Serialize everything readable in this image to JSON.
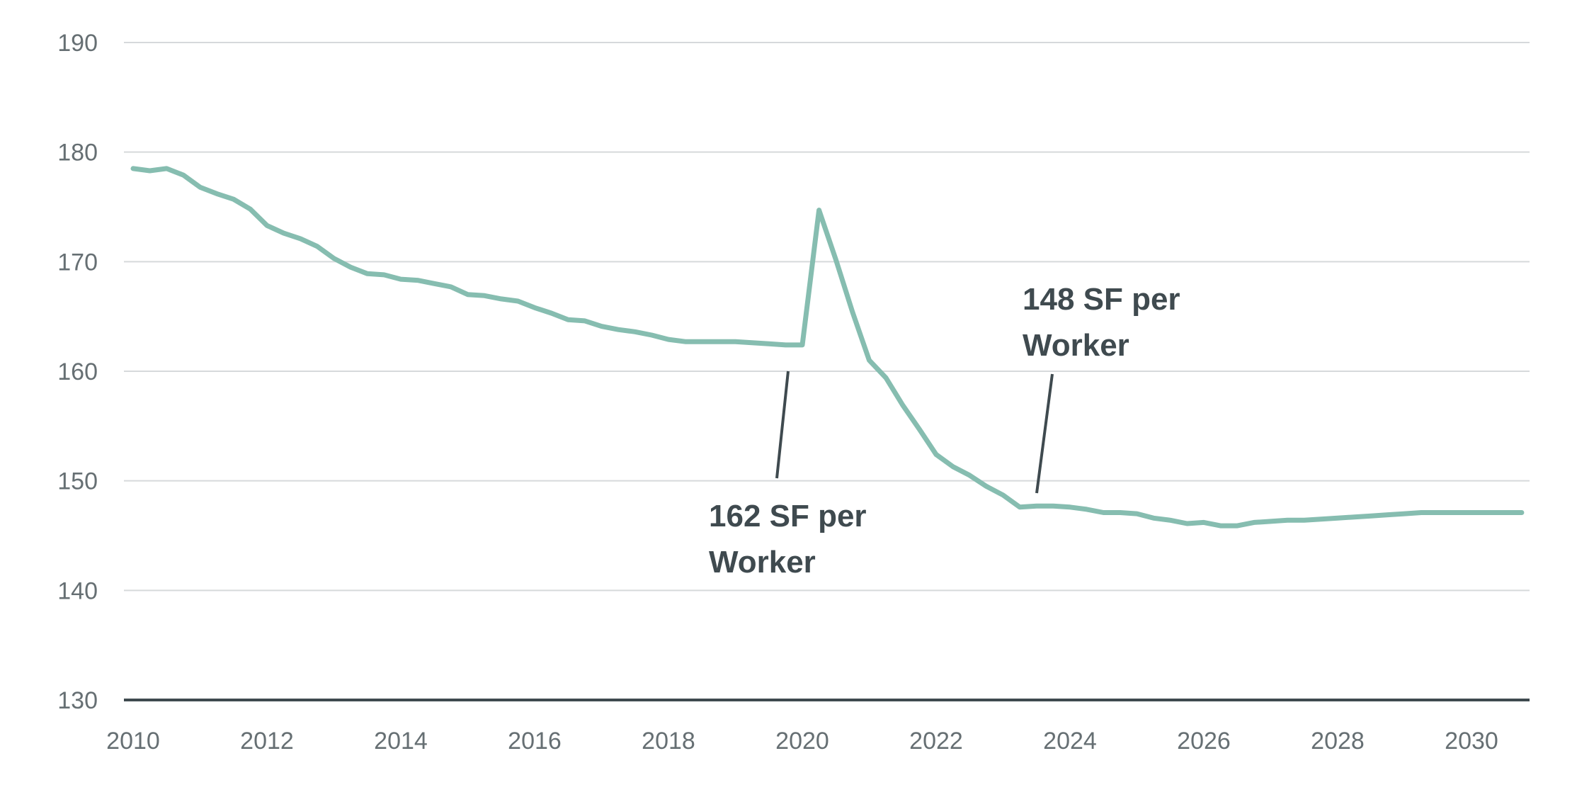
{
  "chart_data": {
    "type": "line",
    "title": "",
    "xlabel": "",
    "ylabel": "",
    "xlim": [
      2010,
      2031
    ],
    "ylim": [
      130,
      190
    ],
    "y_ticks": [
      130,
      140,
      150,
      160,
      170,
      180,
      190
    ],
    "x_ticks": [
      2010,
      2012,
      2014,
      2016,
      2018,
      2020,
      2022,
      2024,
      2026,
      2028,
      2030
    ],
    "grid": true,
    "line_color": "#86bdb0",
    "series": [
      {
        "name": "SF per worker",
        "x": [
          2010.0,
          2010.25,
          2010.5,
          2010.75,
          2011.0,
          2011.25,
          2011.5,
          2011.75,
          2012.0,
          2012.25,
          2012.5,
          2012.75,
          2013.0,
          2013.25,
          2013.5,
          2013.75,
          2014.0,
          2014.25,
          2014.5,
          2014.75,
          2015.0,
          2015.25,
          2015.5,
          2015.75,
          2016.0,
          2016.25,
          2016.5,
          2016.75,
          2017.0,
          2017.25,
          2017.5,
          2017.75,
          2018.0,
          2018.25,
          2018.5,
          2018.75,
          2019.0,
          2019.25,
          2019.5,
          2019.75,
          2020.0,
          2020.25,
          2020.5,
          2020.75,
          2021.0,
          2021.25,
          2021.5,
          2021.75,
          2022.0,
          2022.25,
          2022.5,
          2022.75,
          2023.0,
          2023.25,
          2023.5,
          2023.75,
          2024.0,
          2024.25,
          2024.5,
          2024.75,
          2025.0,
          2025.25,
          2025.5,
          2025.75,
          2026.0,
          2026.25,
          2026.5,
          2026.75,
          2027.0,
          2027.25,
          2027.5,
          2027.75,
          2028.0,
          2028.25,
          2028.5,
          2028.75,
          2029.0,
          2029.25,
          2029.5,
          2029.75,
          2030.0,
          2030.25,
          2030.5,
          2030.75
        ],
        "values": [
          178.5,
          178.3,
          178.5,
          177.9,
          176.8,
          176.2,
          175.7,
          174.8,
          173.3,
          172.6,
          172.1,
          171.4,
          170.3,
          169.5,
          168.9,
          168.8,
          168.4,
          168.3,
          168.0,
          167.7,
          167.0,
          166.9,
          166.6,
          166.4,
          165.8,
          165.3,
          164.7,
          164.6,
          164.1,
          163.8,
          163.6,
          163.3,
          162.9,
          162.7,
          162.7,
          162.7,
          162.7,
          162.6,
          162.5,
          162.4,
          162.4,
          174.7,
          170.2,
          165.4,
          161.0,
          159.4,
          156.9,
          154.7,
          152.4,
          151.3,
          150.5,
          149.5,
          148.7,
          147.6,
          147.7,
          147.7,
          147.6,
          147.4,
          147.1,
          147.1,
          147.0,
          146.6,
          146.4,
          146.1,
          146.2,
          145.9,
          145.9,
          146.2,
          146.3,
          146.4,
          146.4,
          146.5,
          146.6,
          146.7,
          146.8,
          146.9,
          147.0,
          147.1,
          147.1,
          147.1,
          147.1,
          147.1,
          147.1,
          147.1
        ]
      }
    ],
    "annotations": [
      {
        "lines": [
          "162 SF per",
          "Worker"
        ],
        "point": [
          2020.0,
          162.4
        ]
      },
      {
        "lines": [
          "148 SF per",
          "Worker"
        ],
        "point": [
          2023.5,
          147.7
        ]
      }
    ]
  }
}
